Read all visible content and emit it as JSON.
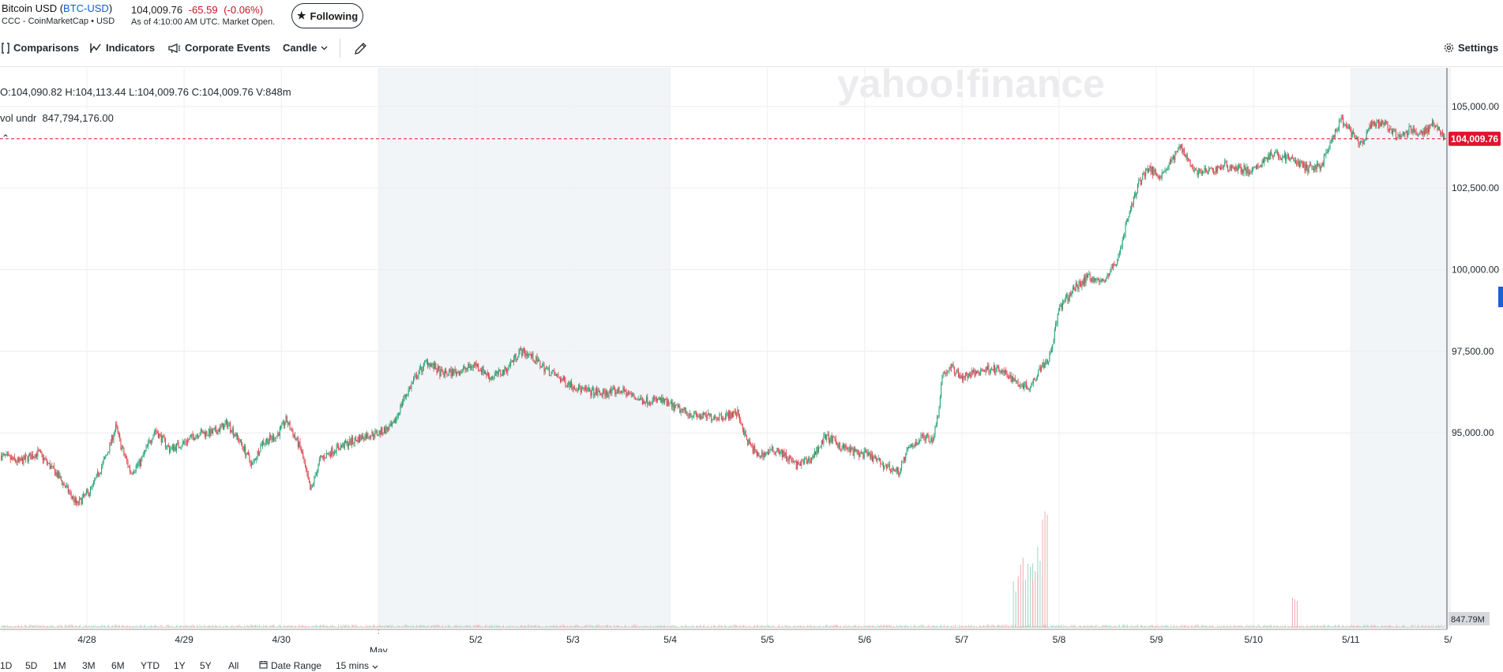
{
  "header": {
    "name": "Bitcoin USD",
    "ticker": "BTC-USD",
    "source": "CCC - CoinMarketCap • USD",
    "price": "104,009.76",
    "change": "-65.59",
    "change_pct": "(-0.06%)",
    "as_of": "As of 4:10:00 AM UTC. Market Open.",
    "follow_label": "Following"
  },
  "toolbar": {
    "comparisons": "Comparisons",
    "indicators": "Indicators",
    "corporate_events": "Corporate Events",
    "candle": "Candle",
    "settings": "Settings"
  },
  "legend": {
    "ohlc": "O:104,090.82  H:104,113.44  L:104,009.76  C:104,009.76  V:848m",
    "vol_name": "vol undr",
    "vol_value": "847,794,176.00"
  },
  "watermark": "yahoo!finance",
  "chart_data": {
    "type": "candlestick",
    "interval": "15 mins",
    "y_ticks": [
      "105,000.00",
      "102,500.00",
      "100,000.00",
      "97,500.00",
      "95,000.00"
    ],
    "y_tick_values": [
      105000,
      102500,
      100000,
      97500,
      95000
    ],
    "ylim": [
      92400,
      105650
    ],
    "current_price_label": "104,009.76",
    "current_price": 104009.76,
    "volume_label": "847.79M",
    "x_ticks": [
      "4/28",
      "4/29",
      "4/30",
      "May",
      "5/2",
      "5/3",
      "5/4",
      "5/5",
      "5/6",
      "5/7",
      "5/8",
      "5/9",
      "5/10",
      "5/11",
      "5/"
    ],
    "x_tick_days": [
      0,
      1,
      2,
      3,
      4,
      5,
      6,
      7,
      8,
      9,
      10,
      11,
      12,
      13,
      14
    ],
    "weekend_shading_days": [
      [
        3,
        6
      ],
      [
        13,
        14.03
      ]
    ],
    "price_path": [
      [
        -0.88,
        94300
      ],
      [
        -0.7,
        94100
      ],
      [
        -0.5,
        94400
      ],
      [
        -0.3,
        93700
      ],
      [
        -0.1,
        92800
      ],
      [
        0.05,
        93300
      ],
      [
        0.2,
        94300
      ],
      [
        0.3,
        95200
      ],
      [
        0.35,
        94600
      ],
      [
        0.45,
        93800
      ],
      [
        0.55,
        94100
      ],
      [
        0.7,
        95100
      ],
      [
        0.85,
        94500
      ],
      [
        1.0,
        94700
      ],
      [
        1.15,
        95000
      ],
      [
        1.3,
        95000
      ],
      [
        1.45,
        95300
      ],
      [
        1.6,
        94600
      ],
      [
        1.7,
        94000
      ],
      [
        1.8,
        94700
      ],
      [
        1.95,
        94900
      ],
      [
        2.05,
        95400
      ],
      [
        2.2,
        94500
      ],
      [
        2.3,
        93200
      ],
      [
        2.4,
        94200
      ],
      [
        2.55,
        94500
      ],
      [
        2.7,
        94700
      ],
      [
        2.85,
        94900
      ],
      [
        3.0,
        95000
      ],
      [
        3.15,
        95200
      ],
      [
        3.25,
        96000
      ],
      [
        3.4,
        96800
      ],
      [
        3.5,
        97200
      ],
      [
        3.65,
        96800
      ],
      [
        3.85,
        96900
      ],
      [
        4.0,
        97100
      ],
      [
        4.15,
        96700
      ],
      [
        4.3,
        96900
      ],
      [
        4.45,
        97500
      ],
      [
        4.55,
        97400
      ],
      [
        4.7,
        97000
      ],
      [
        4.9,
        96600
      ],
      [
        5.1,
        96300
      ],
      [
        5.3,
        96200
      ],
      [
        5.5,
        96300
      ],
      [
        5.7,
        96000
      ],
      [
        5.9,
        96000
      ],
      [
        6.1,
        95700
      ],
      [
        6.3,
        95500
      ],
      [
        6.5,
        95500
      ],
      [
        6.7,
        95600
      ],
      [
        6.78,
        94800
      ],
      [
        6.9,
        94300
      ],
      [
        7.1,
        94500
      ],
      [
        7.3,
        94000
      ],
      [
        7.45,
        94200
      ],
      [
        7.6,
        94900
      ],
      [
        7.75,
        94600
      ],
      [
        7.9,
        94400
      ],
      [
        8.05,
        94300
      ],
      [
        8.2,
        94000
      ],
      [
        8.35,
        93800
      ],
      [
        8.45,
        94500
      ],
      [
        8.6,
        94900
      ],
      [
        8.7,
        94800
      ],
      [
        8.75,
        95500
      ],
      [
        8.8,
        96800
      ],
      [
        8.9,
        97000
      ],
      [
        9.0,
        96700
      ],
      [
        9.1,
        96800
      ],
      [
        9.3,
        97000
      ],
      [
        9.45,
        96800
      ],
      [
        9.6,
        96500
      ],
      [
        9.7,
        96400
      ],
      [
        9.8,
        97000
      ],
      [
        9.9,
        97300
      ],
      [
        10.0,
        98800
      ],
      [
        10.15,
        99400
      ],
      [
        10.3,
        99800
      ],
      [
        10.45,
        99600
      ],
      [
        10.6,
        100300
      ],
      [
        10.7,
        101500
      ],
      [
        10.8,
        102500
      ],
      [
        10.9,
        103100
      ],
      [
        11.05,
        102900
      ],
      [
        11.15,
        103300
      ],
      [
        11.25,
        103800
      ],
      [
        11.4,
        103000
      ],
      [
        11.55,
        103000
      ],
      [
        11.7,
        103200
      ],
      [
        11.85,
        103100
      ],
      [
        12.0,
        103000
      ],
      [
        12.15,
        103500
      ],
      [
        12.3,
        103500
      ],
      [
        12.45,
        103300
      ],
      [
        12.55,
        103100
      ],
      [
        12.7,
        103200
      ],
      [
        12.8,
        103900
      ],
      [
        12.9,
        104600
      ],
      [
        13.0,
        104200
      ],
      [
        13.1,
        103800
      ],
      [
        13.2,
        104400
      ],
      [
        13.35,
        104500
      ],
      [
        13.5,
        104000
      ],
      [
        13.6,
        104300
      ],
      [
        13.75,
        104200
      ],
      [
        13.85,
        104500
      ],
      [
        13.95,
        104100
      ],
      [
        14.03,
        104009.76
      ]
    ],
    "volume_spikes": [
      [
        9.55,
        70
      ],
      [
        9.6,
        90
      ],
      [
        9.65,
        60
      ],
      [
        9.7,
        80
      ],
      [
        9.75,
        95
      ],
      [
        9.8,
        100
      ],
      [
        9.85,
        160
      ],
      [
        12.42,
        42
      ]
    ]
  },
  "range_bar": {
    "buttons": [
      "1D",
      "5D",
      "1M",
      "3M",
      "6M",
      "YTD",
      "1Y",
      "5Y",
      "All"
    ],
    "date_range": "Date Range",
    "interval": "15 mins"
  },
  "colors": {
    "up": "#1fa071",
    "down": "#e23a43",
    "price_badge": "#e0142d",
    "shade": "#f2f5f8",
    "grid": "#ececec",
    "ticker": "#0b5fd8",
    "change": "#c81227"
  }
}
